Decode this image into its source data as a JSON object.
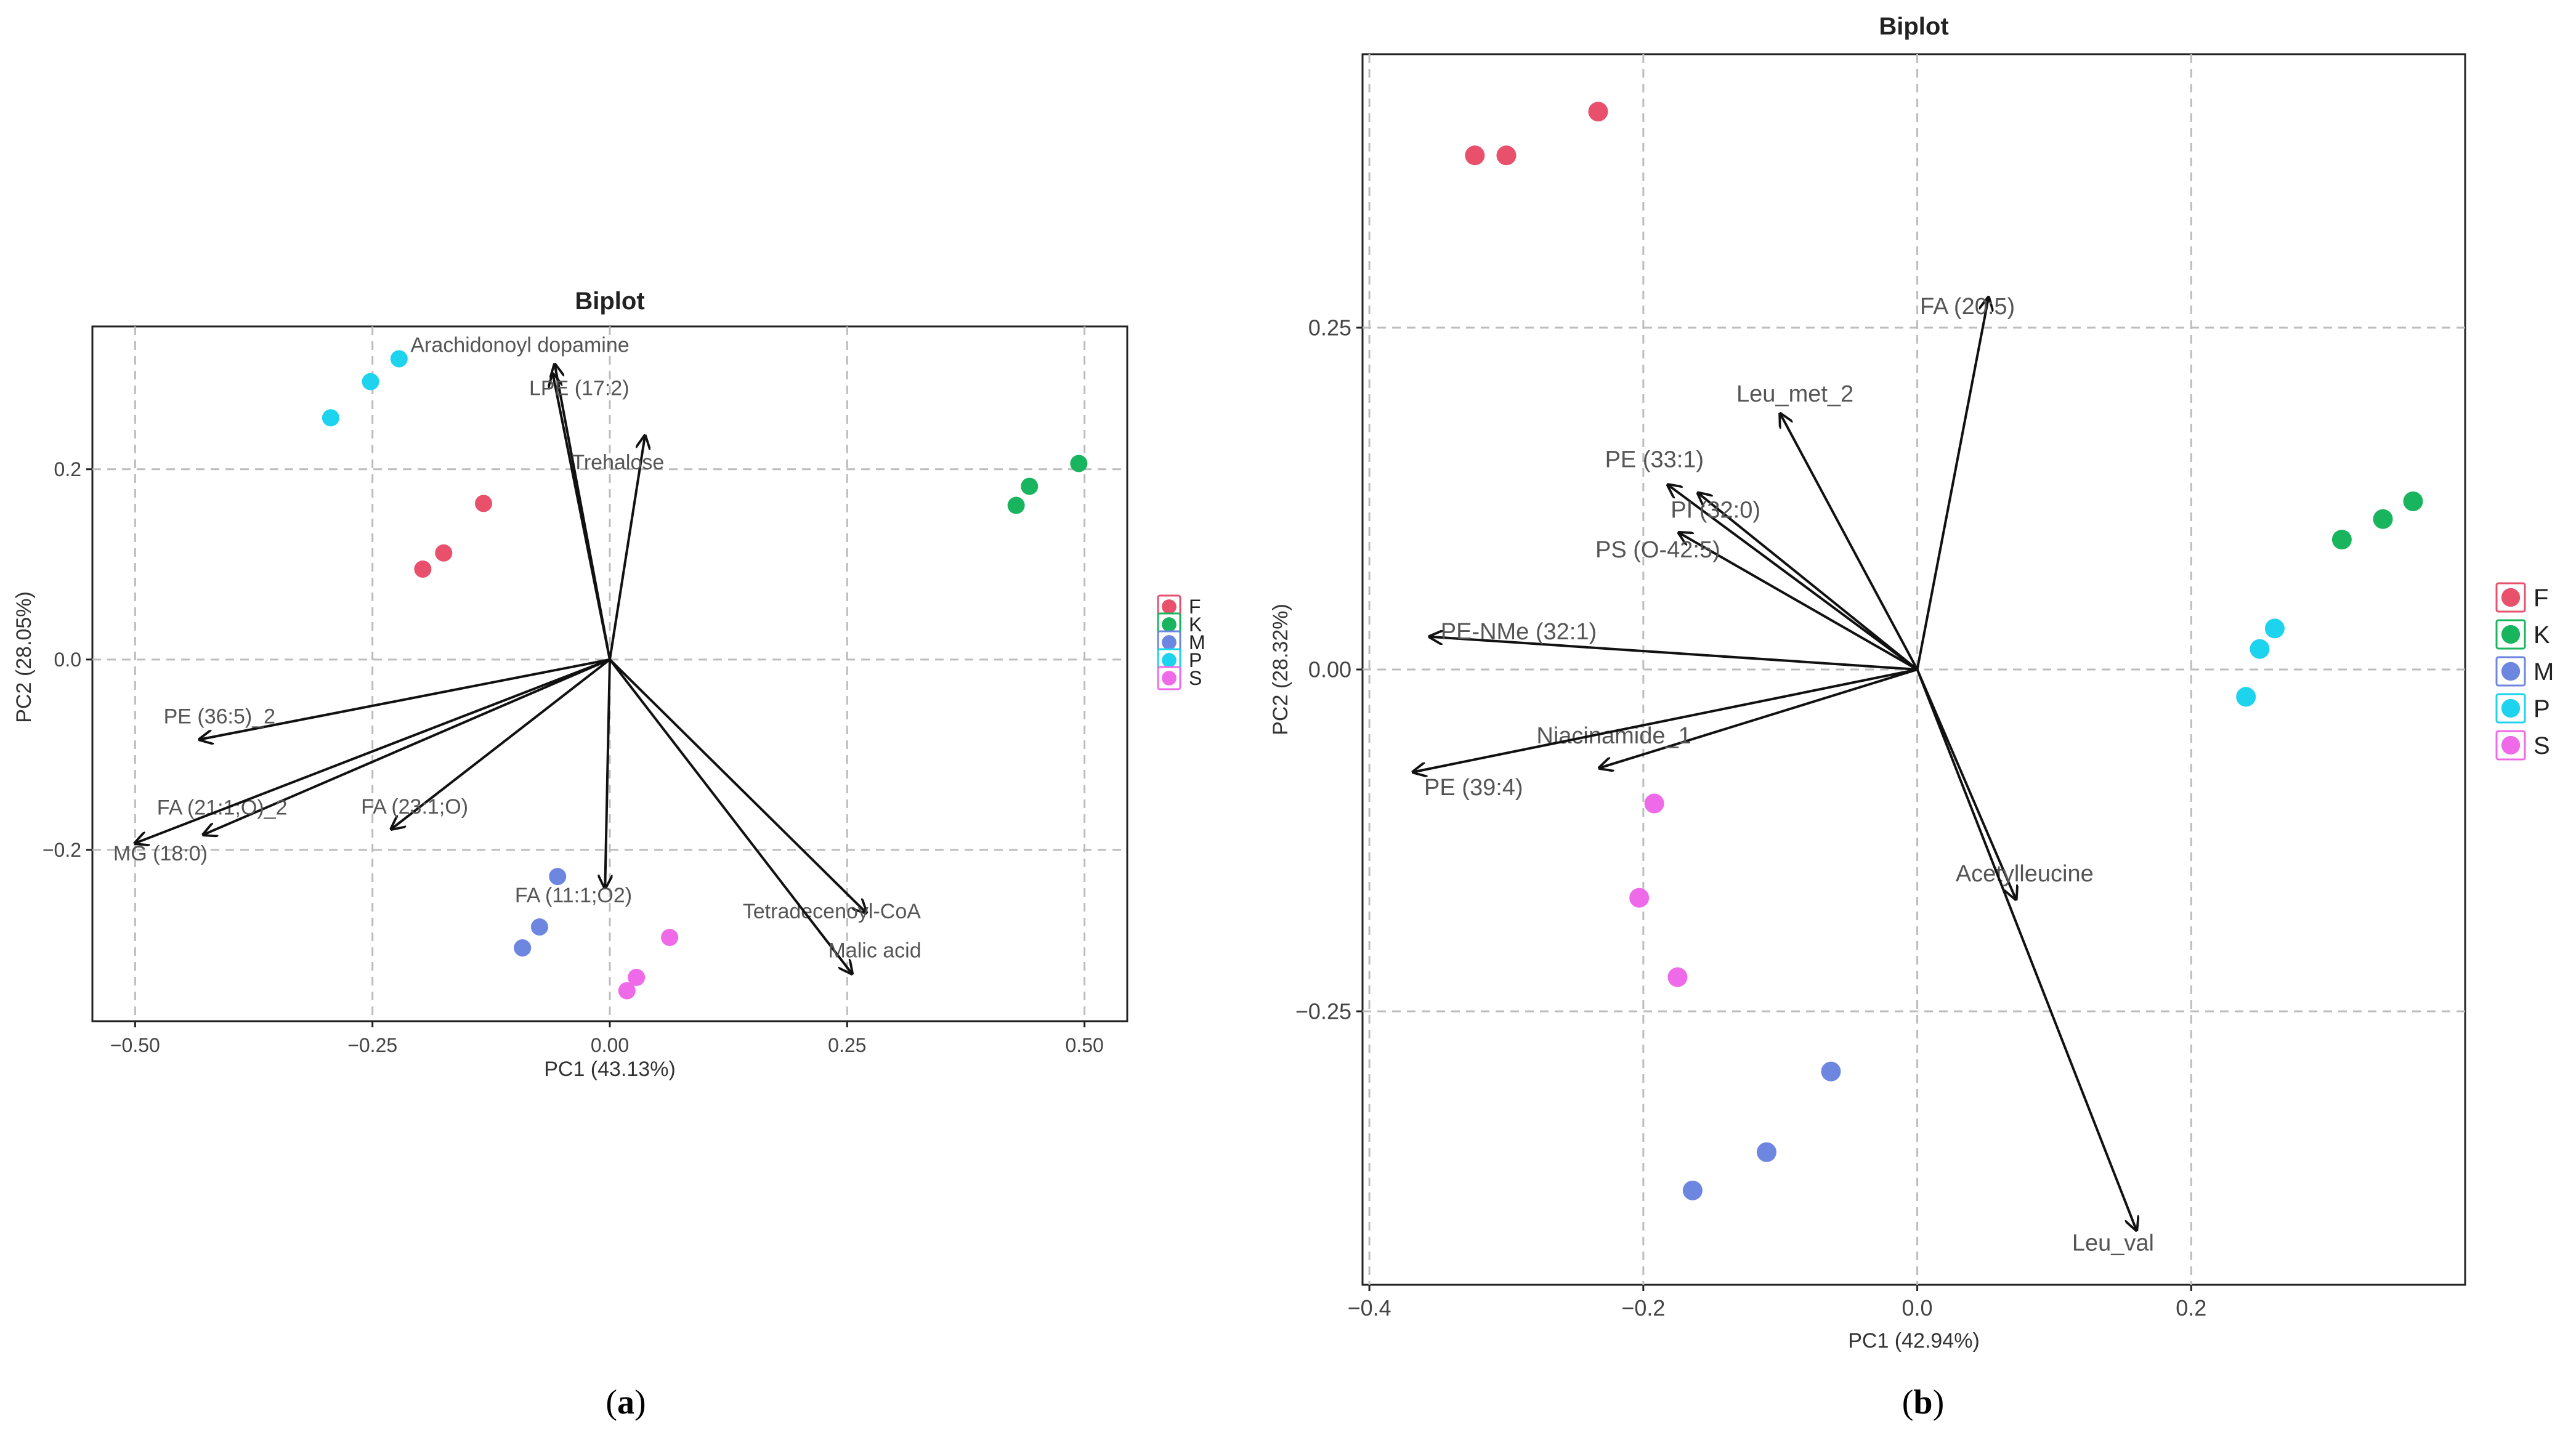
{
  "legend_groups": [
    {
      "key": "F",
      "color": "#e8506c"
    },
    {
      "key": "K",
      "color": "#19b55e"
    },
    {
      "key": "M",
      "color": "#6d86e0"
    },
    {
      "key": "P",
      "color": "#1ed3ee"
    },
    {
      "key": "S",
      "color": "#ee6ae8"
    }
  ],
  "chart_data": [
    {
      "type": "scatter",
      "subtype": "biplot",
      "title": "Biplot",
      "caption_letter": "a",
      "xlabel": "PC1 (43.13%)",
      "ylabel": "PC2 (28.05%)",
      "xlim": [
        -0.545,
        0.545
      ],
      "ylim": [
        -0.38,
        0.35
      ],
      "xticks": [
        -0.5,
        -0.25,
        0.0,
        0.25,
        0.5
      ],
      "xtick_labels": [
        "−0.50",
        "−0.25",
        "0.00",
        "0.25",
        "0.50"
      ],
      "yticks": [
        -0.2,
        0.0,
        0.2
      ],
      "ytick_labels": [
        "−0.2",
        "0.0",
        "0.2"
      ],
      "grid": true,
      "legend_position": "right",
      "series": [
        {
          "name": "F",
          "points": [
            [
              -0.197,
              0.095
            ],
            [
              -0.175,
              0.112
            ],
            [
              -0.133,
              0.164
            ]
          ]
        },
        {
          "name": "K",
          "points": [
            [
              0.428,
              0.162
            ],
            [
              0.442,
              0.182
            ],
            [
              0.494,
              0.206
            ]
          ]
        },
        {
          "name": "M",
          "points": [
            [
              -0.092,
              -0.303
            ],
            [
              -0.074,
              -0.281
            ],
            [
              -0.055,
              -0.228
            ]
          ]
        },
        {
          "name": "P",
          "points": [
            [
              -0.294,
              0.254
            ],
            [
              -0.252,
              0.292
            ],
            [
              -0.222,
              0.316
            ]
          ]
        },
        {
          "name": "S",
          "points": [
            [
              0.018,
              -0.348
            ],
            [
              0.028,
              -0.334
            ],
            [
              0.063,
              -0.292
            ]
          ]
        }
      ],
      "loadings": [
        {
          "label": "Arachidonoyl dopamine",
          "x": -0.058,
          "y": 0.31,
          "lx": -0.21,
          "ly": 0.323
        },
        {
          "label": "LPE (17:2)",
          "x": -0.06,
          "y": 0.3,
          "lx": -0.085,
          "ly": 0.278
        },
        {
          "label": "Trehalose",
          "x": 0.037,
          "y": 0.235,
          "lx": -0.04,
          "ly": 0.2
        },
        {
          "label": "PE (36:5)_2",
          "x": -0.432,
          "y": -0.084,
          "lx": -0.47,
          "ly": -0.067
        },
        {
          "label": "FA (21:1;O)_2",
          "x": -0.428,
          "y": -0.184,
          "lx": -0.477,
          "ly": -0.163
        },
        {
          "label": "MG (18:0)",
          "x": -0.5,
          "y": -0.193,
          "lx": -0.523,
          "ly": -0.211
        },
        {
          "label": "FA (23:1;O)",
          "x": -0.23,
          "y": -0.178,
          "lx": -0.262,
          "ly": -0.162
        },
        {
          "label": "FA (11:1;O2)",
          "x": -0.005,
          "y": -0.24,
          "lx": -0.1,
          "ly": -0.255
        },
        {
          "label": "Tetradecenoyl-CoA",
          "x": 0.27,
          "y": -0.266,
          "lx": 0.14,
          "ly": -0.272
        },
        {
          "label": "Malic acid",
          "x": 0.255,
          "y": -0.33,
          "lx": 0.23,
          "ly": -0.313
        }
      ]
    },
    {
      "type": "scatter",
      "subtype": "biplot",
      "title": "Biplot",
      "caption_letter": "b",
      "xlabel": "PC1 (42.94%)",
      "ylabel": "PC2 (28.32%)",
      "xlim": [
        -0.405,
        0.4
      ],
      "ylim": [
        -0.45,
        0.45
      ],
      "xticks": [
        -0.4,
        -0.2,
        0.0,
        0.2
      ],
      "xtick_labels": [
        "−0.4",
        "−0.2",
        "0.0",
        "0.2"
      ],
      "yticks": [
        -0.25,
        0.0,
        0.25
      ],
      "ytick_labels": [
        "−0.25",
        "0.00",
        "0.25"
      ],
      "grid": true,
      "legend_position": "right",
      "series": [
        {
          "name": "F",
          "points": [
            [
              -0.323,
              0.376
            ],
            [
              -0.3,
              0.376
            ],
            [
              -0.233,
              0.408
            ]
          ]
        },
        {
          "name": "K",
          "points": [
            [
              0.31,
              0.095
            ],
            [
              0.34,
              0.11
            ],
            [
              0.362,
              0.123
            ]
          ]
        },
        {
          "name": "M",
          "points": [
            [
              -0.164,
              -0.381
            ],
            [
              -0.11,
              -0.353
            ],
            [
              -0.063,
              -0.294
            ]
          ]
        },
        {
          "name": "P",
          "points": [
            [
              0.24,
              -0.02
            ],
            [
              0.25,
              0.015
            ],
            [
              0.261,
              0.03
            ]
          ]
        },
        {
          "name": "S",
          "points": [
            [
              -0.203,
              -0.167
            ],
            [
              -0.192,
              -0.098
            ],
            [
              -0.175,
              -0.225
            ]
          ]
        }
      ],
      "loadings": [
        {
          "label": "FA (20:5)",
          "x": 0.052,
          "y": 0.272,
          "lx": 0.002,
          "ly": 0.26
        },
        {
          "label": "Leu_met_2",
          "x": -0.1,
          "y": 0.187,
          "lx": -0.132,
          "ly": 0.196
        },
        {
          "label": "PE (33:1)",
          "x": -0.182,
          "y": 0.135,
          "lx": -0.228,
          "ly": 0.148
        },
        {
          "label": "PI (32:0)",
          "x": -0.16,
          "y": 0.129,
          "lx": -0.18,
          "ly": 0.111
        },
        {
          "label": "PS (O-42:5)",
          "x": -0.174,
          "y": 0.1,
          "lx": -0.235,
          "ly": 0.082
        },
        {
          "label": "PE-NMe (32:1)",
          "x": -0.356,
          "y": 0.024,
          "lx": -0.348,
          "ly": 0.022
        },
        {
          "label": "Niacinamide_1",
          "x": -0.232,
          "y": -0.072,
          "lx": -0.278,
          "ly": -0.054
        },
        {
          "label": "PE (39:4)",
          "x": -0.368,
          "y": -0.075,
          "lx": -0.36,
          "ly": -0.092
        },
        {
          "label": "Acetylleucine",
          "x": 0.072,
          "y": -0.168,
          "lx": 0.028,
          "ly": -0.155
        },
        {
          "label": "Leu_val",
          "x": 0.16,
          "y": -0.41,
          "lx": 0.113,
          "ly": -0.425
        }
      ]
    }
  ]
}
